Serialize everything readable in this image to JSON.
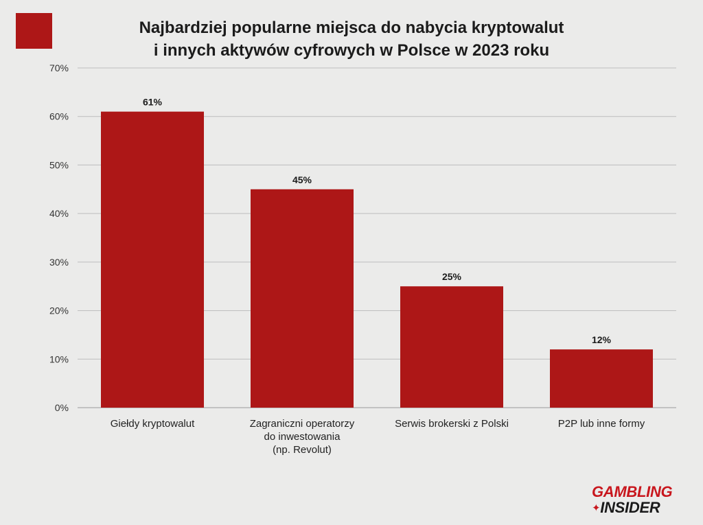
{
  "colors": {
    "bar": "#ad1717",
    "swatch": "#ad1717",
    "grid": "#bdbdbd",
    "text": "#1b1b1b",
    "logo_red": "#c8161d"
  },
  "header": {
    "title_line1": "Najbardziej popularne miejsca do nabycia kryptowalut",
    "title_line2": "i innych aktywów cyfrowych w Polsce w 2023 roku"
  },
  "logo": {
    "line1": "GAMBLING",
    "line2": "INSIDER",
    "mark": "✦"
  },
  "chart_data": {
    "type": "bar",
    "title": "Najbardziej popularne miejsca do nabycia kryptowalut i innych aktywów cyfrowych w Polsce w 2023 roku",
    "categories": [
      [
        "Giełdy kryptowalut"
      ],
      [
        "Zagraniczni operatorzy",
        "do inwestowania",
        "(np. Revolut)"
      ],
      [
        "Serwis brokerski z Polski"
      ],
      [
        "P2P lub inne formy"
      ]
    ],
    "values": [
      61,
      45,
      25,
      12
    ],
    "data_labels": [
      "61%",
      "45%",
      "25%",
      "12%"
    ],
    "ylim": [
      0,
      70
    ],
    "yticks": [
      "0%",
      "10%",
      "20%",
      "30%",
      "40%",
      "50%",
      "60%",
      "70%"
    ],
    "xlabel": "",
    "ylabel": "",
    "grid": true,
    "legend": "none"
  }
}
